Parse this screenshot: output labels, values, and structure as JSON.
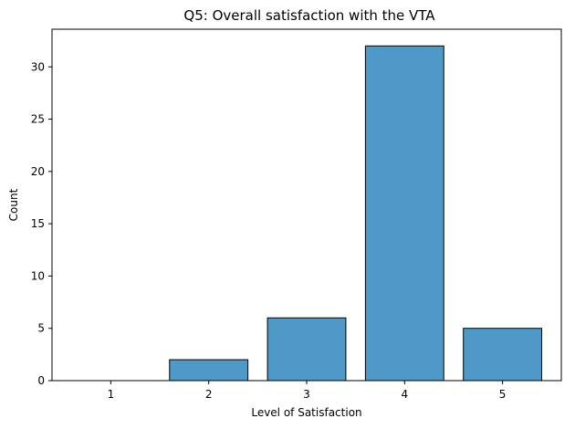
{
  "chart_data": {
    "type": "bar",
    "title": "Q5: Overall satisfaction with the VTA",
    "xlabel": "Level of Satisfaction",
    "ylabel": "Count",
    "categories": [
      "1",
      "2",
      "3",
      "4",
      "5"
    ],
    "values": [
      0,
      2,
      6,
      32,
      5
    ],
    "ylim": [
      0,
      33.6
    ],
    "yticks": [
      0,
      5,
      10,
      15,
      20,
      25,
      30
    ],
    "grid": false,
    "legend": "none",
    "colors": {
      "bar": "#4f99c9",
      "bar_edge": "#000000",
      "axis": "#000000",
      "background": "#ffffff"
    }
  }
}
